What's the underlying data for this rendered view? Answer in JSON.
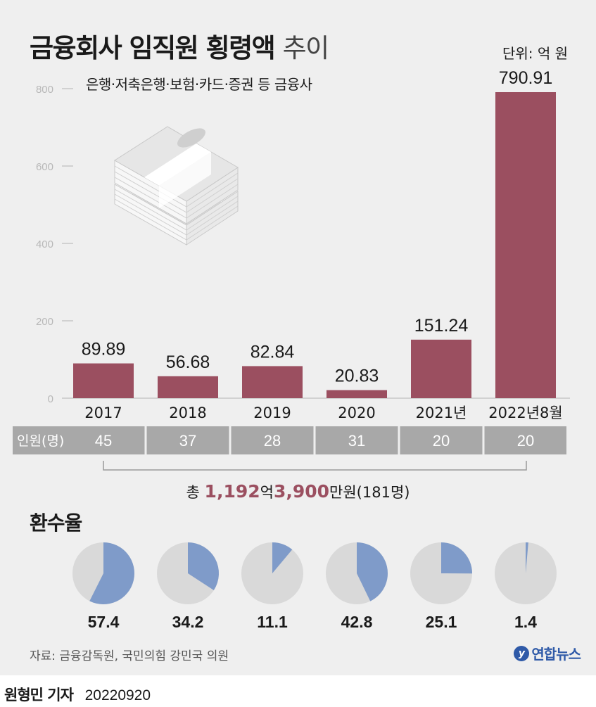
{
  "header": {
    "title_bold": "금융회사 임직원 횡령액",
    "title_light": "추이",
    "subtitle": "은행·저축은행·보험·카드·증권 등 금융사",
    "unit": "단위: 억 원"
  },
  "chart_data": [
    {
      "type": "bar",
      "categories": [
        "2017",
        "2018",
        "2019",
        "2020",
        "2021년",
        "2022년8월"
      ],
      "values": [
        89.89,
        56.68,
        82.84,
        20.83,
        151.24,
        790.91
      ],
      "value_labels": [
        "89.89",
        "56.68",
        "82.84",
        "20.83",
        "151.24",
        "790.91"
      ],
      "ylim": [
        0,
        800
      ],
      "yticks": [
        0,
        200,
        400,
        600,
        800
      ],
      "bar_color": "#9b4f60"
    },
    {
      "type": "pie",
      "categories": [
        "2017",
        "2018",
        "2019",
        "2020",
        "2021년",
        "2022년8월"
      ],
      "values": [
        57.4,
        34.2,
        11.1,
        42.8,
        25.1,
        1.4
      ],
      "value_labels": [
        "57.4",
        "34.2",
        "11.1",
        "42.8",
        "25.1",
        "1.4"
      ],
      "fill_color": "#7f9bc9",
      "rest_color": "#d9d9d9"
    }
  ],
  "people_row": {
    "label": "인원(명)",
    "counts": [
      "45",
      "37",
      "28",
      "31",
      "20",
      "20"
    ]
  },
  "total": {
    "prefix": "총",
    "n1": "1,192",
    "u1": "억",
    "n2": "3,900",
    "u2": "만원",
    "suffix": "(181명)"
  },
  "recovery": {
    "title": "환수율"
  },
  "footer": {
    "source": "자료: 금융감독원, 국민의힘 강민국 의원",
    "logo_text": "연합뉴스",
    "reporter": "원형민 기자",
    "date": "20220920"
  },
  "illustration": {
    "icon": "money-stack-icon"
  }
}
